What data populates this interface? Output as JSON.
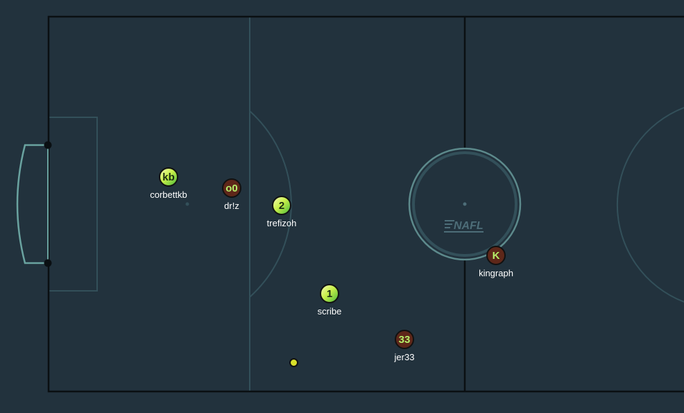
{
  "pitch": {
    "background": "#22323d",
    "line_color": "#0a0f12",
    "marking_color": "#33505a",
    "goal_color": "#6aa3a0"
  },
  "logo": {
    "text": "NAFL",
    "color": "#4d6d78"
  },
  "team_colors": {
    "green": "#c8ef4a",
    "red": "#5e2719"
  },
  "players": [
    {
      "id": "corbettkb",
      "number": "kb",
      "name": "corbettkb",
      "team": "team-a"
    },
    {
      "id": "drz",
      "number": "o0",
      "name": "dr!z",
      "team": "team-b"
    },
    {
      "id": "trefizoh",
      "number": "2",
      "name": "trefizoh",
      "team": "team-a"
    },
    {
      "id": "scribe",
      "number": "1",
      "name": "scribe",
      "team": "team-a"
    },
    {
      "id": "jer33",
      "number": "33",
      "name": "jer33",
      "team": "team-b"
    },
    {
      "id": "kingraph",
      "number": "K",
      "name": "kingraph",
      "team": "team-b"
    }
  ],
  "ball": {
    "color": "#d8e02a"
  }
}
